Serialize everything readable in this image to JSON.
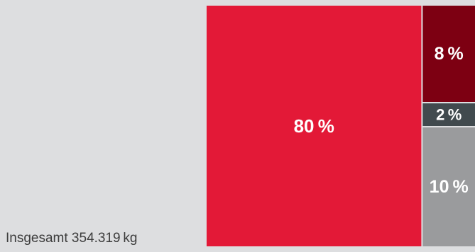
{
  "caption": "Insgesamt 354.319 kg",
  "chart_data": {
    "type": "treemap",
    "title": "",
    "total_label": "Insgesamt 354.319 kg",
    "unit": "%",
    "items": [
      {
        "label": "80 %",
        "value": 80,
        "color": "#e31937"
      },
      {
        "label": "8 %",
        "value": 8,
        "color": "#7d0012"
      },
      {
        "label": "2 %",
        "value": 2,
        "color": "#414a4e"
      },
      {
        "label": "10 %",
        "value": 10,
        "color": "#9a9b9d"
      }
    ]
  }
}
